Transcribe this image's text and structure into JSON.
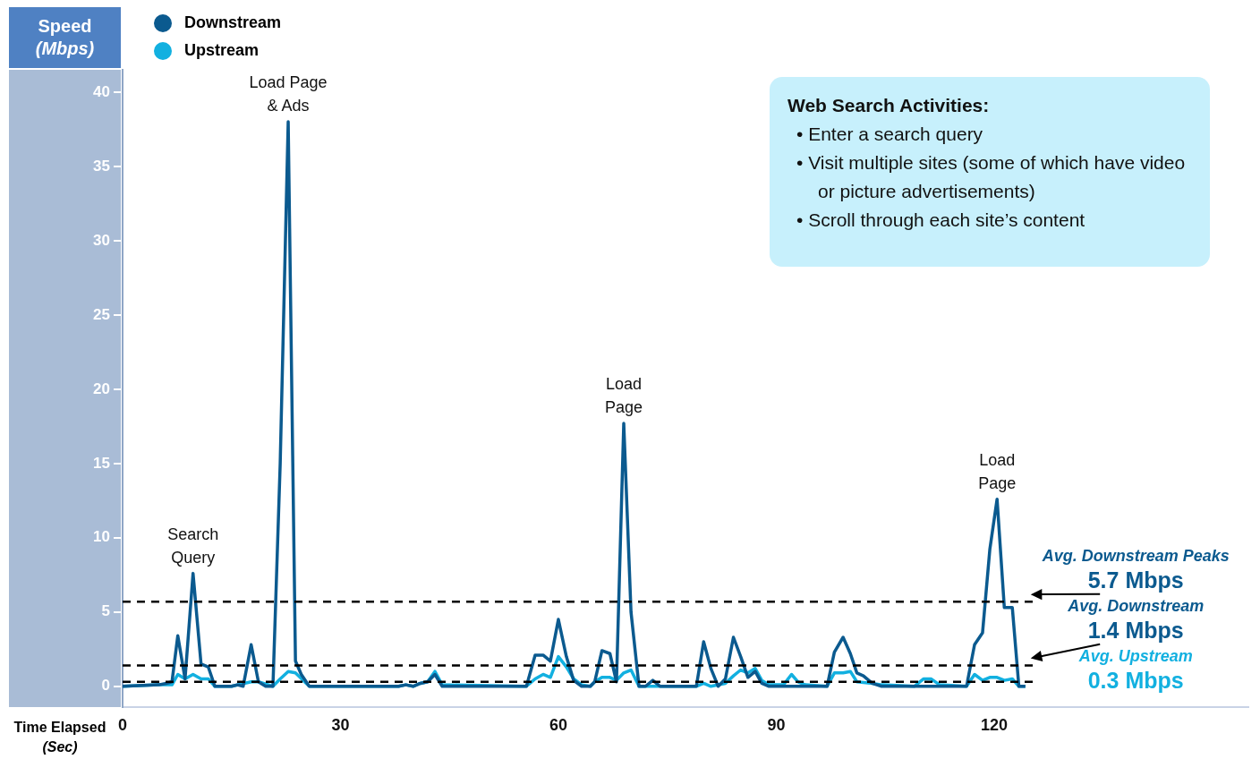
{
  "chart_data": {
    "type": "line",
    "ylabel": "Speed (Mbps)",
    "xlabel": "Time Elapsed (Sec)",
    "xlim": [
      0,
      155
    ],
    "xticks": [
      0,
      30,
      60,
      90,
      120
    ],
    "ylim": [
      -1.4,
      41.5
    ],
    "yticks": [
      0,
      5,
      10,
      15,
      20,
      25,
      30,
      35,
      40
    ],
    "grid": false,
    "legend": "top left",
    "marker": "none",
    "line_style": "solid",
    "series": [
      {
        "name": "Downstream",
        "color": "#0b5a8f",
        "x": [
          0,
          5,
          6,
          6.8,
          7.6,
          8.6,
          9.7,
          10.8,
          11.8,
          12.7,
          15,
          15.8,
          16.6,
          17.7,
          18.7,
          19.7,
          20.7,
          21.7,
          22.8,
          23.8,
          24.6,
          25.7,
          38,
          39,
          40,
          41,
          42,
          43,
          44,
          55.6,
          56.8,
          57.9,
          58.9,
          60,
          61.1,
          62.1,
          63.2,
          64.4,
          65,
          66,
          67.1,
          68,
          69,
          70,
          71.1,
          72,
          73,
          74,
          79,
          80,
          81,
          82,
          83,
          84.1,
          85.1,
          86.1,
          87.1,
          88,
          89,
          97,
          98,
          99.2,
          100.2,
          101.1,
          102,
          103.2,
          104.5,
          116.2,
          117.3,
          118.4,
          119.4,
          120.4,
          121.4,
          122.5,
          123.4,
          124.3
        ],
        "values": [
          0,
          0.1,
          0.2,
          0.3,
          3.4,
          0.5,
          7.6,
          1.5,
          1.3,
          0,
          0,
          0.1,
          0,
          2.8,
          0.3,
          0,
          0,
          15,
          38,
          1.7,
          0.8,
          0,
          0,
          0.1,
          0,
          0.2,
          0.3,
          0.8,
          0,
          0,
          2.1,
          2.1,
          1.7,
          4.5,
          2,
          0.4,
          0,
          0,
          0.3,
          2.4,
          2.2,
          0.3,
          17.7,
          5,
          0,
          0,
          0.4,
          0,
          0,
          3,
          1.2,
          0,
          0.5,
          3.3,
          2,
          0.6,
          1,
          0.2,
          0,
          0,
          2.3,
          3.3,
          2.2,
          0.9,
          0.7,
          0.2,
          0,
          0,
          2.8,
          3.6,
          9.2,
          12.6,
          5.3,
          5.3,
          0,
          0
        ]
      },
      {
        "name": "Upstream",
        "color": "#12b0e0",
        "x": [
          0,
          5,
          6.8,
          7.6,
          8.6,
          9.7,
          10.8,
          11.8,
          12.7,
          15,
          17.7,
          18.7,
          20.7,
          21.7,
          22.8,
          23.8,
          25.7,
          38,
          39,
          40,
          41,
          42,
          43,
          44,
          55.6,
          56.8,
          57.9,
          58.9,
          60,
          61.1,
          62.1,
          63.2,
          64.4,
          65,
          66,
          67.1,
          68,
          69,
          70,
          71.1,
          79,
          80,
          81,
          83,
          84.1,
          85.1,
          86.1,
          87.1,
          88,
          89,
          91,
          92.1,
          93,
          94,
          97,
          98,
          99.2,
          100.2,
          101.1,
          103.2,
          104.5,
          109,
          110.3,
          111.3,
          112.5,
          116.2,
          117.3,
          118.4,
          119.4,
          120.4,
          121.4,
          122.5,
          123.4,
          124.3
        ],
        "values": [
          0,
          0.1,
          0.1,
          0.8,
          0.5,
          0.8,
          0.5,
          0.5,
          0,
          0,
          0.3,
          0.3,
          0,
          0.5,
          1.0,
          0.9,
          0,
          0,
          0.1,
          0,
          0.2,
          0.3,
          1.0,
          0.1,
          0,
          0.5,
          0.8,
          0.6,
          2.0,
          1.3,
          0.5,
          0.1,
          0,
          0.3,
          0.6,
          0.6,
          0.4,
          0.9,
          1.1,
          0,
          0,
          0.2,
          0,
          0.2,
          0.7,
          1.1,
          0.9,
          1.2,
          0.4,
          0.1,
          0.1,
          0.8,
          0.3,
          0.1,
          0,
          0.9,
          0.9,
          1.0,
          0.3,
          0.2,
          0.1,
          0,
          0.5,
          0.5,
          0.1,
          0,
          0.8,
          0.4,
          0.6,
          0.6,
          0.4,
          0.5,
          0,
          0
        ]
      }
    ],
    "ref_lines": [
      {
        "axis": "y",
        "value": 5.7,
        "label": "Avg. Downstream Peaks 5.7 Mbps",
        "color": "#000000",
        "line_style": "dashed"
      },
      {
        "axis": "y",
        "value": 1.4,
        "label": "Avg. Downstream 1.4 Mbps",
        "color": "#000000",
        "line_style": "dashed"
      },
      {
        "axis": "y",
        "value": 0.3,
        "label": "Avg. Upstream 0.3 Mbps",
        "color": "#000000",
        "line_style": "dashed"
      }
    ],
    "annotations": [
      {
        "text": "Search Query",
        "x": 9.7,
        "y": 7.6
      },
      {
        "text": "Load Page & Ads",
        "x": 22.8,
        "y": 38
      },
      {
        "text": "Load Page",
        "x": 69,
        "y": 17.7
      },
      {
        "text": "Load Page",
        "x": 120.4,
        "y": 12.6
      },
      "Web Search Activities:",
      "• Enter a search query",
      "• Visit multiple sites (some of which have video or picture advertisements)",
      "• Scroll through each site’s content"
    ]
  }
}
